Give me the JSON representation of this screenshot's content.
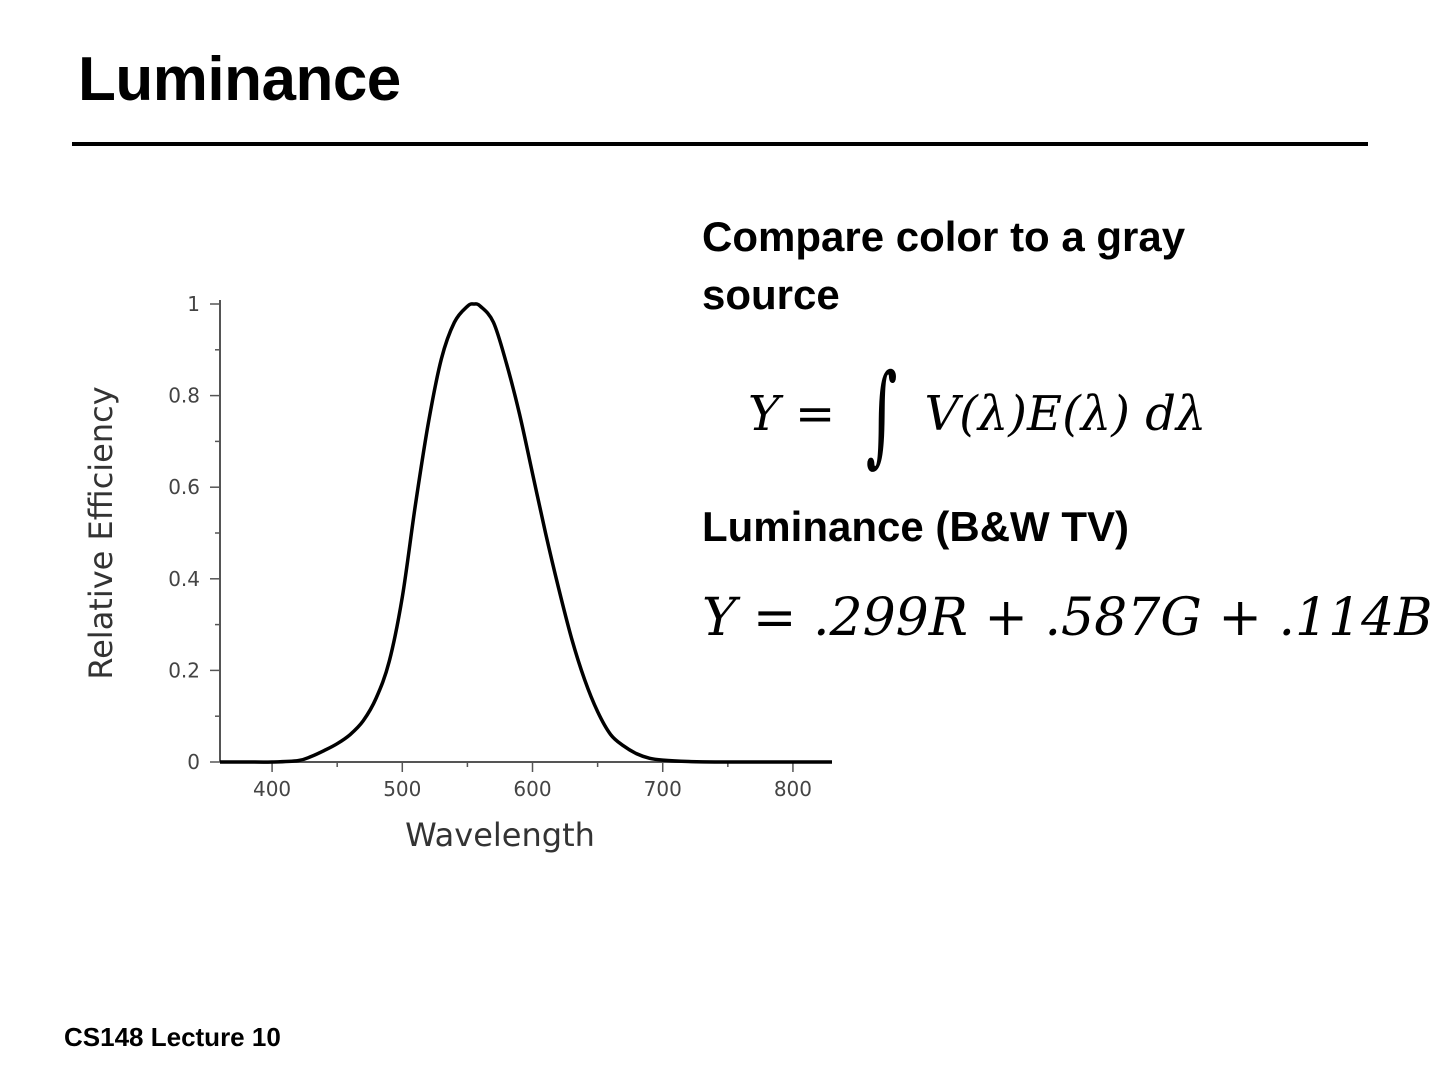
{
  "slide": {
    "title": "Luminance",
    "bullet_1": "Compare color to a gray source",
    "equation_integral": {
      "lhs": "Y =",
      "integral": "∫",
      "rhs": "V(λ)E(λ) dλ"
    },
    "bullet_2": "Luminance (B&W TV)",
    "equation_luma": "Y = .299R + .587G + .114B",
    "footer": "CS148 Lecture 10"
  },
  "chart_data": {
    "type": "line",
    "xlabel": "Wavelength",
    "ylabel": "Relative Efficiency",
    "xlim": [
      360,
      830
    ],
    "ylim": [
      0,
      1
    ],
    "x_ticks": [
      400,
      500,
      600,
      700,
      800
    ],
    "y_ticks": [
      0,
      0.2,
      0.4,
      0.6,
      0.8,
      1
    ],
    "y_tick_labels": [
      "0",
      "0.2",
      "0.4",
      "0.6",
      "0.8",
      "1"
    ],
    "grid": false,
    "series": [
      {
        "x": [
          360,
          380,
          400,
          420,
          430,
          440,
          450,
          460,
          470,
          480,
          490,
          500,
          510,
          520,
          530,
          540,
          550,
          555,
          560,
          570,
          580,
          590,
          600,
          610,
          620,
          630,
          640,
          650,
          660,
          670,
          680,
          690,
          700,
          720,
          740,
          760,
          780,
          800,
          830
        ],
        "values": [
          0,
          0,
          0,
          0.003,
          0.012,
          0.025,
          0.04,
          0.06,
          0.09,
          0.14,
          0.22,
          0.36,
          0.56,
          0.74,
          0.88,
          0.96,
          0.995,
          1.0,
          0.995,
          0.96,
          0.87,
          0.76,
          0.63,
          0.5,
          0.38,
          0.27,
          0.18,
          0.11,
          0.06,
          0.035,
          0.018,
          0.008,
          0.004,
          0.001,
          0,
          0,
          0,
          0,
          0
        ]
      }
    ],
    "line_color": "#000000"
  }
}
